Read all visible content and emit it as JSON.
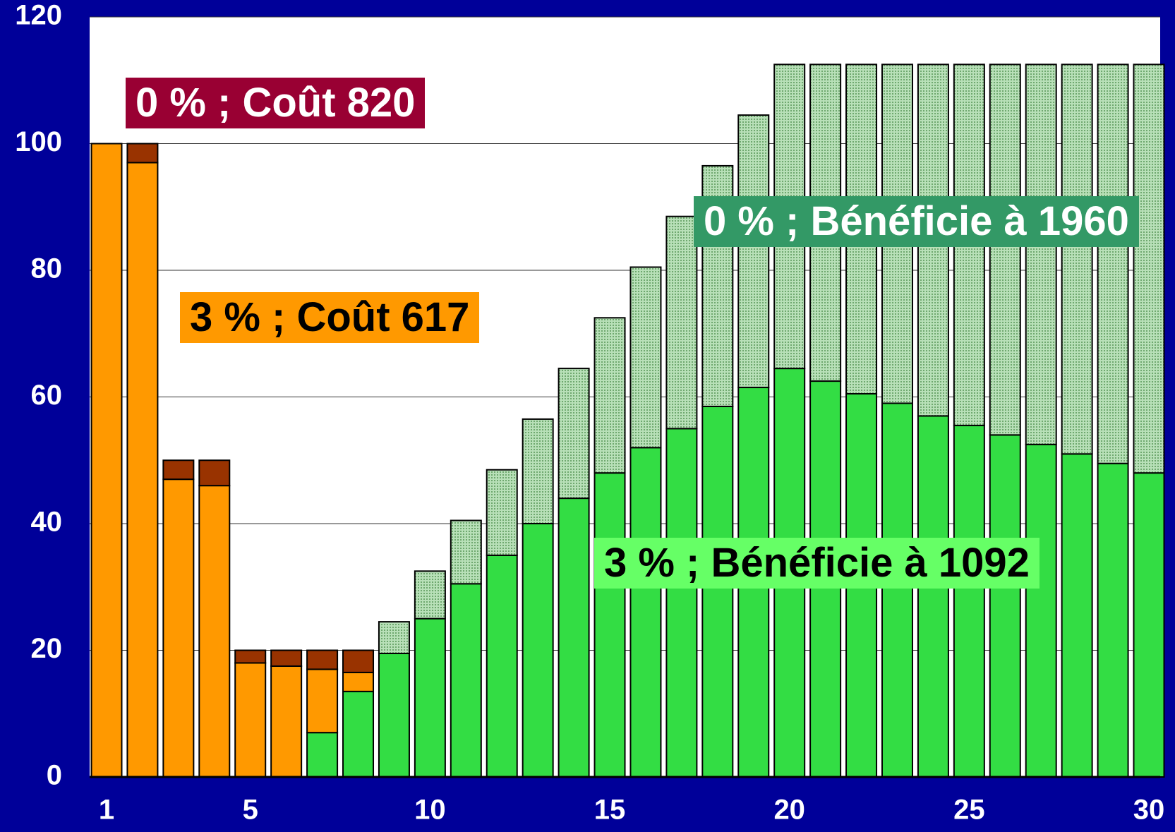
{
  "chart_data": {
    "type": "bar",
    "stacked": true,
    "categories": [
      1,
      null,
      null,
      null,
      5,
      null,
      null,
      null,
      null,
      10,
      null,
      null,
      null,
      null,
      15,
      null,
      null,
      null,
      null,
      20,
      null,
      null,
      null,
      null,
      25,
      null,
      null,
      null,
      null,
      30
    ],
    "series": [
      {
        "color": "#33dd44",
        "pattern": "none",
        "values": [
          null,
          null,
          null,
          null,
          null,
          null,
          7,
          13.5,
          19.5,
          25,
          30.5,
          35,
          40,
          44,
          48,
          52,
          55,
          58.5,
          61.5,
          64.5,
          62.5,
          60.5,
          59,
          57,
          55.5,
          54,
          52.5,
          51,
          49.5,
          48
        ]
      },
      {
        "color": "#ff9900",
        "pattern": "none",
        "values": [
          100,
          97,
          47,
          46,
          18,
          17.5,
          10,
          3,
          null,
          null,
          null,
          null,
          null,
          null,
          null,
          null,
          null,
          null,
          null,
          null,
          null,
          null,
          null,
          null,
          null,
          null,
          null,
          null,
          null,
          null
        ]
      },
      {
        "color": "#993300",
        "pattern": "none",
        "values": [
          null,
          3,
          3,
          4,
          2,
          2.5,
          3,
          3.5,
          null,
          null,
          null,
          null,
          null,
          null,
          null,
          null,
          null,
          null,
          null,
          null,
          null,
          null,
          null,
          null,
          null,
          null,
          null,
          null,
          null,
          null
        ]
      },
      {
        "color": "#a8d4a8",
        "pattern": "dots",
        "values": [
          null,
          null,
          null,
          null,
          null,
          null,
          null,
          null,
          5,
          7.5,
          10,
          13.5,
          16.5,
          20.5,
          24.5,
          28.5,
          33.5,
          38,
          43,
          48,
          50,
          52,
          53.5,
          55.5,
          57,
          58.5,
          60,
          61.5,
          63,
          64.5
        ]
      }
    ],
    "ylim": [
      0,
      120
    ],
    "yticks": [
      0,
      20,
      40,
      60,
      80,
      100,
      120
    ],
    "grid": true,
    "annotations": [
      {
        "text": "0 % ; Coût 820",
        "background": "#990033",
        "color": "#ffffff"
      },
      {
        "text": "3 % ; Coût 617",
        "background": "#ff9900",
        "color": "#000000"
      },
      {
        "text": "0 % ; Bénéficie à 1960",
        "background": "#339966",
        "color": "#ffffff"
      },
      {
        "text": "3 % ; Bénéficie à 1092",
        "background": "#66ff66",
        "color": "#000000"
      }
    ]
  }
}
